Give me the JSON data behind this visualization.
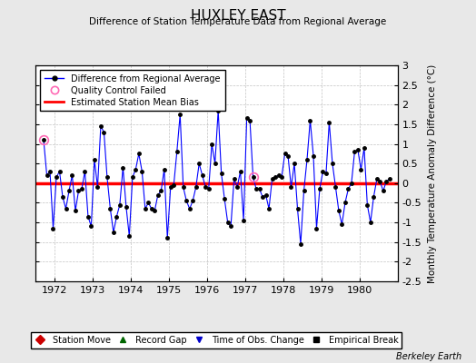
{
  "title": "HUXLEY EAST",
  "subtitle": "Difference of Station Temperature Data from Regional Average",
  "ylabel": "Monthly Temperature Anomaly Difference (°C)",
  "xlim": [
    1971.5,
    1981.0
  ],
  "ylim": [
    -2.5,
    3.0
  ],
  "yticks": [
    -2.5,
    -2,
    -1.5,
    -1,
    -0.5,
    0,
    0.5,
    1,
    1.5,
    2,
    2.5,
    3
  ],
  "xticks": [
    1972,
    1973,
    1974,
    1975,
    1976,
    1977,
    1978,
    1979,
    1980
  ],
  "bias": 0.0,
  "background_color": "#e8e8e8",
  "plot_bg_color": "#ffffff",
  "line_color": "#0000ff",
  "marker_color": "#000000",
  "bias_color": "#ff0000",
  "qc_failed_indices": [
    0,
    66
  ],
  "times": [
    1971.708,
    1971.792,
    1971.875,
    1971.958,
    1972.042,
    1972.125,
    1972.208,
    1972.292,
    1972.375,
    1972.458,
    1972.542,
    1972.625,
    1972.708,
    1972.792,
    1972.875,
    1972.958,
    1973.042,
    1973.125,
    1973.208,
    1973.292,
    1973.375,
    1973.458,
    1973.542,
    1973.625,
    1973.708,
    1973.792,
    1973.875,
    1973.958,
    1974.042,
    1974.125,
    1974.208,
    1974.292,
    1974.375,
    1974.458,
    1974.542,
    1974.625,
    1974.708,
    1974.792,
    1974.875,
    1974.958,
    1975.042,
    1975.125,
    1975.208,
    1975.292,
    1975.375,
    1975.458,
    1975.542,
    1975.625,
    1975.708,
    1975.792,
    1975.875,
    1975.958,
    1976.042,
    1976.125,
    1976.208,
    1976.292,
    1976.375,
    1976.458,
    1976.542,
    1976.625,
    1976.708,
    1976.792,
    1976.875,
    1976.958,
    1977.042,
    1977.125,
    1977.208,
    1977.292,
    1977.375,
    1977.458,
    1977.542,
    1977.625,
    1977.708,
    1977.792,
    1977.875,
    1977.958,
    1978.042,
    1978.125,
    1978.208,
    1978.292,
    1978.375,
    1978.458,
    1978.542,
    1978.625,
    1978.708,
    1978.792,
    1978.875,
    1978.958,
    1979.042,
    1979.125,
    1979.208,
    1979.292,
    1979.375,
    1979.458,
    1979.542,
    1979.625,
    1979.708,
    1979.792,
    1979.875,
    1979.958,
    1980.042,
    1980.125,
    1980.208,
    1980.292,
    1980.375,
    1980.458,
    1980.542,
    1980.625,
    1980.708,
    1980.792
  ],
  "values": [
    1.1,
    0.2,
    0.3,
    -1.15,
    0.15,
    0.3,
    -0.35,
    -0.65,
    -0.2,
    0.2,
    -0.7,
    -0.2,
    -0.15,
    0.3,
    -0.85,
    -1.1,
    0.6,
    -0.1,
    1.45,
    1.3,
    0.15,
    -0.65,
    -1.25,
    -0.85,
    -0.55,
    0.4,
    -0.6,
    -1.35,
    0.15,
    0.35,
    0.75,
    0.3,
    -0.65,
    -0.5,
    -0.65,
    -0.7,
    -0.3,
    -0.2,
    0.35,
    -1.4,
    -0.1,
    -0.05,
    0.8,
    1.75,
    -0.1,
    -0.45,
    -0.65,
    -0.45,
    -0.1,
    0.5,
    0.2,
    -0.1,
    -0.15,
    1.0,
    0.5,
    1.85,
    0.25,
    -0.4,
    -1.0,
    -1.1,
    0.1,
    -0.1,
    0.3,
    -0.95,
    1.65,
    1.6,
    0.15,
    -0.15,
    -0.15,
    -0.35,
    -0.3,
    -0.65,
    0.1,
    0.15,
    0.2,
    0.15,
    0.75,
    0.7,
    -0.1,
    0.5,
    -0.65,
    -1.55,
    -0.2,
    0.6,
    1.6,
    0.7,
    -1.15,
    -0.15,
    0.3,
    0.25,
    1.55,
    0.5,
    -0.1,
    -0.7,
    -1.05,
    -0.5,
    -0.15,
    0.0,
    0.8,
    0.85,
    0.35,
    0.9,
    -0.55,
    -1.0,
    -0.35,
    0.1,
    0.05,
    -0.2,
    0.05,
    0.1
  ],
  "footnote": "Berkeley Earth"
}
